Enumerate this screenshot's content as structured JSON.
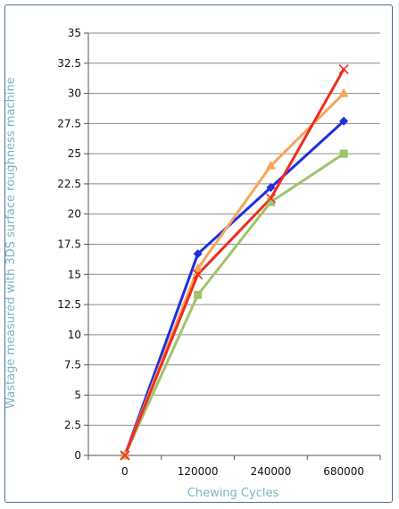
{
  "chart_data": {
    "type": "line",
    "title": "",
    "xlabel": "Chewing Cycles",
    "ylabel": "Wastage measured with 3DS surface roughness machine",
    "categories": [
      "0",
      "120000",
      "240000",
      "680000"
    ],
    "y_ticks": [
      "0",
      "2.5",
      "5",
      "7.5",
      "10",
      "12.5",
      "15",
      "17.5",
      "20",
      "22.5",
      "25",
      "27.5",
      "30",
      "32.5",
      "35"
    ],
    "ylim": [
      0,
      35
    ],
    "y_step": 2.5,
    "grid": "horizontal",
    "legend": "none",
    "series": [
      {
        "values": [
          0,
          16.7,
          22.2,
          27.7
        ],
        "color": "#1f2ee0",
        "marker": "diamond"
      },
      {
        "values": [
          0,
          13.3,
          21.0,
          25.0
        ],
        "color": "#9fc46a",
        "marker": "square"
      },
      {
        "values": [
          0,
          15.5,
          24.0,
          30.0
        ],
        "color": "#f5a65b",
        "marker": "triangle"
      },
      {
        "values": [
          0,
          15.0,
          21.3,
          32.0
        ],
        "color": "#f12b1e",
        "marker": "x"
      }
    ]
  }
}
